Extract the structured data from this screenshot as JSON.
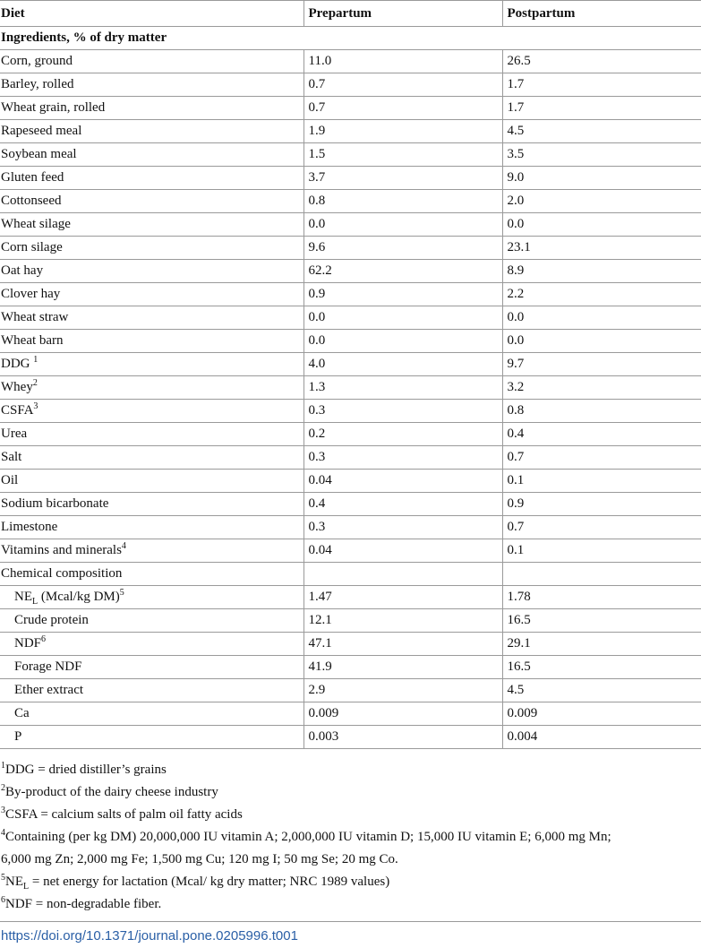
{
  "table": {
    "headers": [
      "Diet",
      "Prepartum",
      "Postpartum"
    ],
    "section_ingredients": "Ingredients, % of dry matter",
    "ingredients": [
      {
        "name": "Corn, ground",
        "sup": "",
        "pre": "11.0",
        "post": "26.5"
      },
      {
        "name": "Barley, rolled",
        "sup": "",
        "pre": "0.7",
        "post": "1.7"
      },
      {
        "name": "Wheat grain, rolled",
        "sup": "",
        "pre": "0.7",
        "post": "1.7"
      },
      {
        "name": "Rapeseed meal",
        "sup": "",
        "pre": "1.9",
        "post": "4.5"
      },
      {
        "name": "Soybean meal",
        "sup": "",
        "pre": "1.5",
        "post": "3.5"
      },
      {
        "name": "Gluten feed",
        "sup": "",
        "pre": "3.7",
        "post": "9.0"
      },
      {
        "name": "Cottonseed",
        "sup": "",
        "pre": "0.8",
        "post": "2.0"
      },
      {
        "name": "Wheat silage",
        "sup": "",
        "pre": "0.0",
        "post": "0.0"
      },
      {
        "name": "Corn silage",
        "sup": "",
        "pre": "9.6",
        "post": "23.1"
      },
      {
        "name": "Oat hay",
        "sup": "",
        "pre": "62.2",
        "post": "8.9"
      },
      {
        "name": "Clover hay",
        "sup": "",
        "pre": "0.9",
        "post": "2.2"
      },
      {
        "name": "Wheat straw",
        "sup": "",
        "pre": "0.0",
        "post": "0.0"
      },
      {
        "name": "Wheat barn",
        "sup": "",
        "pre": "0.0",
        "post": "0.0"
      },
      {
        "name": "DDG ",
        "sup": "1",
        "pre": "4.0",
        "post": "9.7"
      },
      {
        "name": "Whey",
        "sup": "2",
        "pre": "1.3",
        "post": "3.2"
      },
      {
        "name": "CSFA",
        "sup": "3",
        "pre": "0.3",
        "post": "0.8"
      },
      {
        "name": "Urea",
        "sup": "",
        "pre": "0.2",
        "post": "0.4"
      },
      {
        "name": "Salt",
        "sup": "",
        "pre": "0.3",
        "post": "0.7"
      },
      {
        "name": "Oil",
        "sup": "",
        "pre": "0.04",
        "post": "0.1"
      },
      {
        "name": "Sodium bicarbonate",
        "sup": "",
        "pre": "0.4",
        "post": "0.9"
      },
      {
        "name": "Limestone",
        "sup": "",
        "pre": "0.3",
        "post": "0.7"
      },
      {
        "name": "Vitamins and minerals",
        "sup": "4",
        "pre": "0.04",
        "post": "0.1"
      }
    ],
    "section_chemical": "Chemical composition",
    "chemical": {
      "nel": {
        "pre_text": "NE",
        "sub": "L",
        "post_text": " (Mcal/kg DM)",
        "sup": "5",
        "pre": "1.47",
        "post": "1.78"
      },
      "crude_protein": {
        "name": "Crude protein",
        "pre": "12.1",
        "post": "16.5"
      },
      "ndf": {
        "name": "NDF",
        "sup": "6",
        "pre": "47.1",
        "post": "29.1"
      },
      "forage_ndf": {
        "name": "Forage NDF",
        "pre": "41.9",
        "post": "16.5"
      },
      "ether_extract": {
        "name": "Ether extract",
        "pre": "2.9",
        "post": "4.5"
      },
      "ca": {
        "name": "Ca",
        "pre": "0.009",
        "post": "0.009"
      },
      "p": {
        "name": "P",
        "pre": "0.003",
        "post": "0.004"
      }
    }
  },
  "footnotes": {
    "f1": {
      "mark": "1",
      "text": "DDG = dried distiller’s grains"
    },
    "f2": {
      "mark": "2",
      "text": "By-product of the dairy cheese industry"
    },
    "f3": {
      "mark": "3",
      "text": "CSFA = calcium salts of palm oil fatty acids"
    },
    "f4": {
      "mark": "4",
      "line1": "Containing (per kg DM) 20,000,000 IU vitamin A; 2,000,000 IU vitamin D; 15,000 IU vitamin E; 6,000 mg Mn;",
      "line2": "6,000 mg Zn; 2,000 mg Fe; 1,500 mg Cu; 120 mg I; 50 mg Se; 20 mg Co."
    },
    "f5": {
      "mark": "5",
      "pre_text": "NE",
      "sub": "L",
      "post_text": " = net energy for lactation (Mcal/ kg dry matter; NRC 1989 values)"
    },
    "f6": {
      "mark": "6",
      "text": "NDF = non-degradable fiber."
    }
  },
  "doi": "https://doi.org/10.1371/journal.pone.0205996.t001",
  "colors": {
    "link": "#2a5fa6",
    "rule": "#9a9a9a"
  }
}
